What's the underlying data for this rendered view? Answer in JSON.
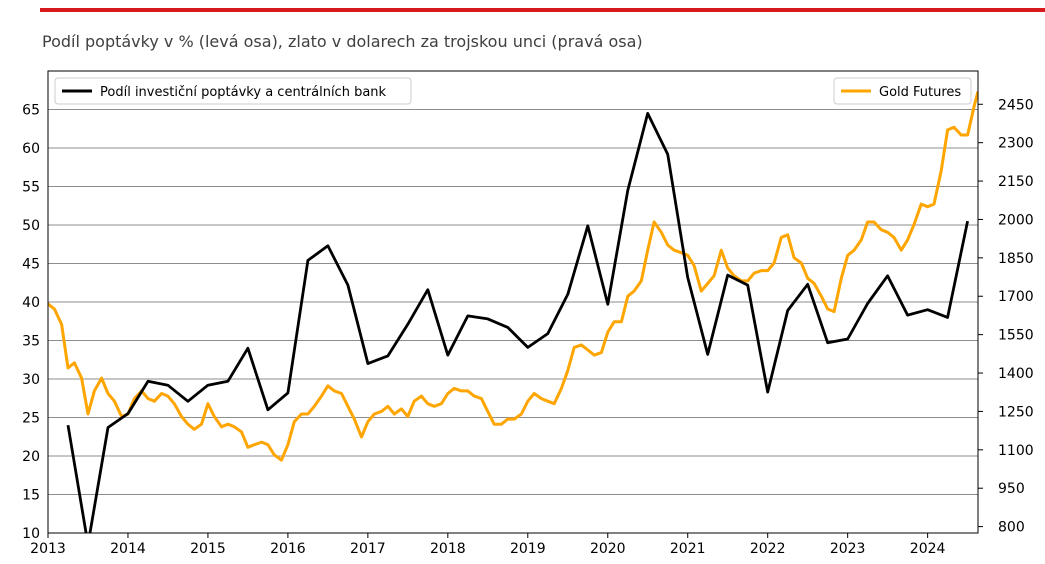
{
  "title": "Podíl poptávky v % (levá osa), zlato v dolarech za trojskou unci (pravá osa)",
  "colors": {
    "accent": "#d7191c",
    "demand": "#000000",
    "gold": "#ffa500",
    "grid": "#666666"
  },
  "chart_data": {
    "type": "line",
    "title": "Podíl poptávky v % (levá osa), zlato v dolarech za trojskou unci (pravá osa)",
    "x_ticks": [
      "2013",
      "2014",
      "2015",
      "2016",
      "2017",
      "2018",
      "2019",
      "2020",
      "2021",
      "2022",
      "2023",
      "2024"
    ],
    "xlim": [
      2013.0,
      2024.63
    ],
    "left_axis": {
      "ylim": [
        10,
        70
      ],
      "ticks": [
        10,
        15,
        20,
        25,
        30,
        35,
        40,
        45,
        50,
        55,
        60,
        65
      ]
    },
    "right_axis": {
      "ylim": [
        775,
        2580
      ],
      "ticks": [
        800,
        950,
        1100,
        1250,
        1400,
        1550,
        1700,
        1850,
        2000,
        2150,
        2300,
        2450
      ]
    },
    "grid": true,
    "series": [
      {
        "name": "Podíl investiční poptávky a centrálních bank",
        "axis": "left",
        "legend_position": "top-left",
        "x": [
          2013.25,
          2013.5,
          2013.75,
          2014.0,
          2014.25,
          2014.5,
          2014.75,
          2015.0,
          2015.25,
          2015.5,
          2015.75,
          2016.0,
          2016.25,
          2016.5,
          2016.75,
          2017.0,
          2017.25,
          2017.5,
          2017.75,
          2018.0,
          2018.25,
          2018.5,
          2018.75,
          2019.0,
          2019.25,
          2019.5,
          2019.75,
          2020.0,
          2020.25,
          2020.5,
          2020.75,
          2021.0,
          2021.25,
          2021.5,
          2021.75,
          2022.0,
          2022.25,
          2022.5,
          2022.75,
          2023.0,
          2023.25,
          2023.5,
          2023.75,
          2024.0,
          2024.25,
          2024.5
        ],
        "y": [
          24.0,
          8.5,
          23.7,
          25.5,
          29.7,
          29.2,
          27.1,
          29.2,
          29.7,
          34.0,
          26.0,
          28.2,
          45.4,
          47.3,
          42.2,
          32.0,
          33.0,
          37.1,
          41.6,
          33.1,
          38.2,
          37.8,
          36.7,
          34.1,
          35.9,
          41.0,
          49.9,
          39.7,
          54.5,
          64.5,
          59.2,
          43.2,
          33.2,
          43.5,
          42.2,
          28.3,
          38.9,
          42.3,
          34.7,
          35.2,
          39.8,
          43.4,
          38.3,
          39.0,
          38.0,
          50.5
        ]
      },
      {
        "name": "Gold Futures",
        "axis": "right",
        "legend_position": "top-right",
        "x": [
          2013.0,
          2013.08,
          2013.17,
          2013.25,
          2013.33,
          2013.42,
          2013.5,
          2013.58,
          2013.67,
          2013.75,
          2013.83,
          2013.92,
          2014.0,
          2014.08,
          2014.17,
          2014.25,
          2014.33,
          2014.42,
          2014.5,
          2014.58,
          2014.67,
          2014.75,
          2014.83,
          2014.92,
          2015.0,
          2015.08,
          2015.17,
          2015.25,
          2015.33,
          2015.42,
          2015.5,
          2015.58,
          2015.67,
          2015.75,
          2015.83,
          2015.92,
          2016.0,
          2016.08,
          2016.17,
          2016.25,
          2016.33,
          2016.42,
          2016.5,
          2016.58,
          2016.67,
          2016.75,
          2016.83,
          2016.92,
          2017.0,
          2017.08,
          2017.17,
          2017.25,
          2017.33,
          2017.42,
          2017.5,
          2017.58,
          2017.67,
          2017.75,
          2017.83,
          2017.92,
          2018.0,
          2018.08,
          2018.17,
          2018.25,
          2018.33,
          2018.42,
          2018.5,
          2018.58,
          2018.67,
          2018.75,
          2018.83,
          2018.92,
          2019.0,
          2019.08,
          2019.17,
          2019.25,
          2019.33,
          2019.42,
          2019.5,
          2019.58,
          2019.67,
          2019.75,
          2019.83,
          2019.92,
          2020.0,
          2020.08,
          2020.17,
          2020.25,
          2020.33,
          2020.42,
          2020.5,
          2020.58,
          2020.67,
          2020.75,
          2020.83,
          2020.92,
          2021.0,
          2021.08,
          2021.17,
          2021.25,
          2021.33,
          2021.42,
          2021.5,
          2021.58,
          2021.67,
          2021.75,
          2021.83,
          2021.92,
          2022.0,
          2022.08,
          2022.17,
          2022.25,
          2022.33,
          2022.42,
          2022.5,
          2022.58,
          2022.67,
          2022.75,
          2022.83,
          2022.92,
          2023.0,
          2023.08,
          2023.17,
          2023.25,
          2023.33,
          2023.42,
          2023.5,
          2023.58,
          2023.67,
          2023.75,
          2023.83,
          2023.92,
          2024.0,
          2024.08,
          2024.17,
          2024.25,
          2024.33,
          2024.42,
          2024.5,
          2024.58,
          2024.63
        ],
        "y": [
          1670,
          1650,
          1590,
          1420,
          1440,
          1380,
          1240,
          1330,
          1380,
          1320,
          1290,
          1230,
          1240,
          1300,
          1330,
          1300,
          1290,
          1320,
          1310,
          1280,
          1230,
          1200,
          1180,
          1200,
          1280,
          1230,
          1190,
          1200,
          1190,
          1170,
          1110,
          1120,
          1130,
          1120,
          1080,
          1060,
          1120,
          1210,
          1240,
          1240,
          1270,
          1310,
          1350,
          1330,
          1320,
          1270,
          1220,
          1150,
          1210,
          1240,
          1250,
          1270,
          1240,
          1260,
          1230,
          1290,
          1310,
          1280,
          1270,
          1280,
          1320,
          1340,
          1330,
          1330,
          1310,
          1300,
          1250,
          1200,
          1200,
          1220,
          1220,
          1240,
          1290,
          1320,
          1300,
          1290,
          1280,
          1340,
          1410,
          1500,
          1510,
          1490,
          1470,
          1480,
          1560,
          1600,
          1600,
          1700,
          1720,
          1760,
          1880,
          1990,
          1950,
          1900,
          1880,
          1870,
          1860,
          1820,
          1720,
          1750,
          1780,
          1880,
          1810,
          1780,
          1760,
          1760,
          1790,
          1800,
          1800,
          1830,
          1930,
          1940,
          1850,
          1830,
          1770,
          1750,
          1700,
          1650,
          1640,
          1770,
          1860,
          1880,
          1920,
          1990,
          1990,
          1960,
          1950,
          1930,
          1880,
          1920,
          1980,
          2060,
          2050,
          2060,
          2190,
          2350,
          2360,
          2330,
          2330,
          2440,
          2500
        ]
      }
    ]
  }
}
